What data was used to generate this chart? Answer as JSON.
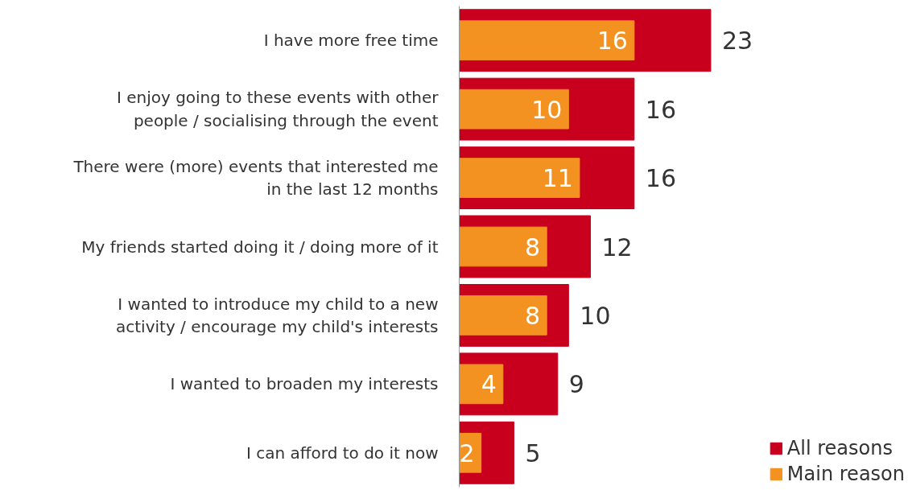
{
  "chart_data": {
    "type": "bar",
    "orientation": "horizontal",
    "categories": [
      "I have more free time",
      "I enjoy going to these events with other\npeople / socialising through the event",
      "There were (more) events that interested me\nin the last 12 months",
      "My friends started doing it / doing more of it",
      "I wanted to introduce my child to a new\nactivity / encourage my child's interests",
      "I wanted to broaden my interests",
      "I can afford to do it now"
    ],
    "series": [
      {
        "name": "All reasons",
        "color": "#c8001e",
        "values": [
          23,
          16,
          16,
          12,
          10,
          9,
          5
        ]
      },
      {
        "name": "Main reason",
        "color": "#f39220",
        "values": [
          16,
          10,
          11,
          8,
          8,
          4,
          2
        ]
      }
    ],
    "data_labels": true,
    "legend": "bottom right",
    "tick_labels": "y",
    "grid": false
  }
}
